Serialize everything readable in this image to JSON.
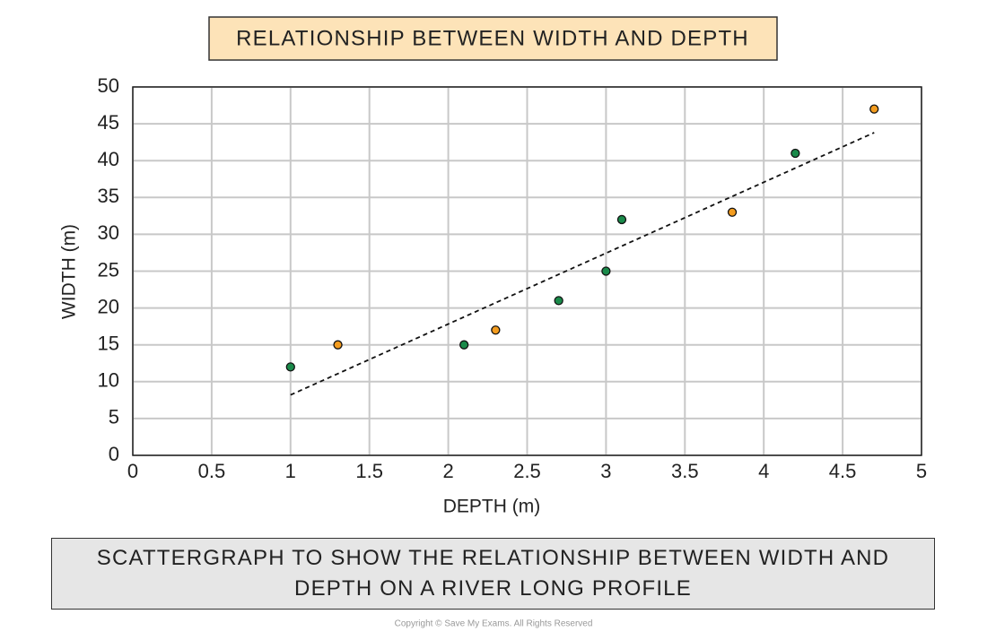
{
  "chart_data": {
    "type": "scatter",
    "title": "RELATIONSHIP BETWEEN WIDTH AND DEPTH",
    "x_label": "DEPTH (m)",
    "y_label": "WIDTH (m)",
    "series": [
      {
        "color": "#1a8a4a",
        "x": [
          1,
          2.1,
          2.7,
          3,
          3.1,
          4.2
        ],
        "y": [
          12,
          15,
          21,
          25,
          32,
          41
        ]
      },
      {
        "color": "#f39c1f",
        "x": [
          1.3,
          2.3,
          3.8,
          4.7
        ],
        "y": [
          15,
          17,
          33,
          47
        ]
      }
    ],
    "trendline": {
      "x": [
        1,
        4.7
      ],
      "y": [
        8.2,
        43.8
      ]
    },
    "xlim": [
      0,
      5
    ],
    "xticks": [
      0,
      0.5,
      1,
      1.5,
      2,
      2.5,
      3,
      3.5,
      4,
      4.5,
      5
    ],
    "ylim": [
      0,
      50
    ],
    "yticks": [
      0,
      5,
      10,
      15,
      20,
      25,
      30,
      35,
      40,
      45,
      50
    ],
    "grid": true,
    "caption": "SCATTERGRAPH TO SHOW THE RELATIONSHIP BETWEEN WIDTH AND DEPTH ON A RIVER LONG PROFILE",
    "copyright": "Copyright © Save My Exams. All Rights Reserved"
  }
}
